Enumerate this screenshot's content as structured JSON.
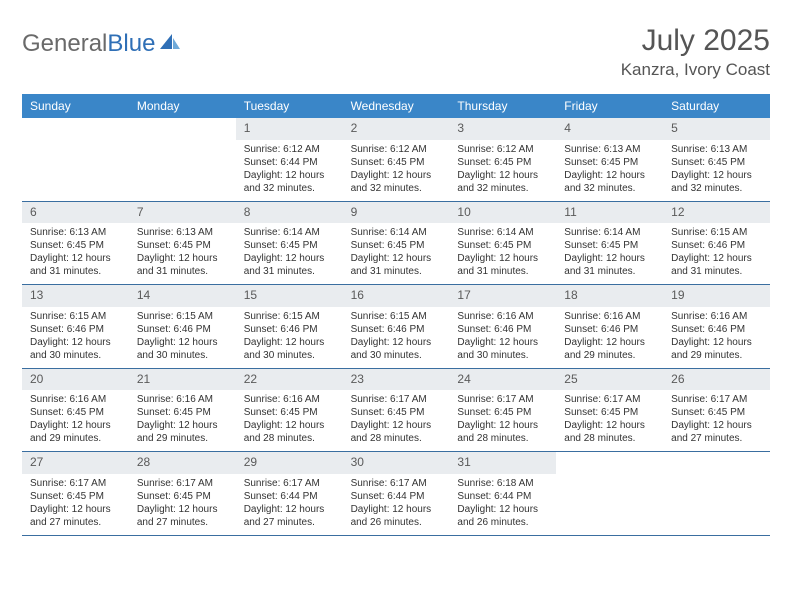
{
  "brand": {
    "part1": "General",
    "part2": "Blue"
  },
  "title": "July 2025",
  "location": "Kanzra, Ivory Coast",
  "colors": {
    "header_bg": "#3a86c8",
    "header_text": "#ffffff",
    "daynum_bg": "#e9ecef",
    "week_border": "#3a6ea0",
    "text": "#333333",
    "logo_gray": "#6a6a6a",
    "logo_blue": "#2f6fb6"
  },
  "weekdays": [
    "Sunday",
    "Monday",
    "Tuesday",
    "Wednesday",
    "Thursday",
    "Friday",
    "Saturday"
  ],
  "weeks": [
    [
      null,
      null,
      {
        "n": "1",
        "sr": "Sunrise: 6:12 AM",
        "ss": "Sunset: 6:44 PM",
        "d1": "Daylight: 12 hours",
        "d2": "and 32 minutes."
      },
      {
        "n": "2",
        "sr": "Sunrise: 6:12 AM",
        "ss": "Sunset: 6:45 PM",
        "d1": "Daylight: 12 hours",
        "d2": "and 32 minutes."
      },
      {
        "n": "3",
        "sr": "Sunrise: 6:12 AM",
        "ss": "Sunset: 6:45 PM",
        "d1": "Daylight: 12 hours",
        "d2": "and 32 minutes."
      },
      {
        "n": "4",
        "sr": "Sunrise: 6:13 AM",
        "ss": "Sunset: 6:45 PM",
        "d1": "Daylight: 12 hours",
        "d2": "and 32 minutes."
      },
      {
        "n": "5",
        "sr": "Sunrise: 6:13 AM",
        "ss": "Sunset: 6:45 PM",
        "d1": "Daylight: 12 hours",
        "d2": "and 32 minutes."
      }
    ],
    [
      {
        "n": "6",
        "sr": "Sunrise: 6:13 AM",
        "ss": "Sunset: 6:45 PM",
        "d1": "Daylight: 12 hours",
        "d2": "and 31 minutes."
      },
      {
        "n": "7",
        "sr": "Sunrise: 6:13 AM",
        "ss": "Sunset: 6:45 PM",
        "d1": "Daylight: 12 hours",
        "d2": "and 31 minutes."
      },
      {
        "n": "8",
        "sr": "Sunrise: 6:14 AM",
        "ss": "Sunset: 6:45 PM",
        "d1": "Daylight: 12 hours",
        "d2": "and 31 minutes."
      },
      {
        "n": "9",
        "sr": "Sunrise: 6:14 AM",
        "ss": "Sunset: 6:45 PM",
        "d1": "Daylight: 12 hours",
        "d2": "and 31 minutes."
      },
      {
        "n": "10",
        "sr": "Sunrise: 6:14 AM",
        "ss": "Sunset: 6:45 PM",
        "d1": "Daylight: 12 hours",
        "d2": "and 31 minutes."
      },
      {
        "n": "11",
        "sr": "Sunrise: 6:14 AM",
        "ss": "Sunset: 6:45 PM",
        "d1": "Daylight: 12 hours",
        "d2": "and 31 minutes."
      },
      {
        "n": "12",
        "sr": "Sunrise: 6:15 AM",
        "ss": "Sunset: 6:46 PM",
        "d1": "Daylight: 12 hours",
        "d2": "and 31 minutes."
      }
    ],
    [
      {
        "n": "13",
        "sr": "Sunrise: 6:15 AM",
        "ss": "Sunset: 6:46 PM",
        "d1": "Daylight: 12 hours",
        "d2": "and 30 minutes."
      },
      {
        "n": "14",
        "sr": "Sunrise: 6:15 AM",
        "ss": "Sunset: 6:46 PM",
        "d1": "Daylight: 12 hours",
        "d2": "and 30 minutes."
      },
      {
        "n": "15",
        "sr": "Sunrise: 6:15 AM",
        "ss": "Sunset: 6:46 PM",
        "d1": "Daylight: 12 hours",
        "d2": "and 30 minutes."
      },
      {
        "n": "16",
        "sr": "Sunrise: 6:15 AM",
        "ss": "Sunset: 6:46 PM",
        "d1": "Daylight: 12 hours",
        "d2": "and 30 minutes."
      },
      {
        "n": "17",
        "sr": "Sunrise: 6:16 AM",
        "ss": "Sunset: 6:46 PM",
        "d1": "Daylight: 12 hours",
        "d2": "and 30 minutes."
      },
      {
        "n": "18",
        "sr": "Sunrise: 6:16 AM",
        "ss": "Sunset: 6:46 PM",
        "d1": "Daylight: 12 hours",
        "d2": "and 29 minutes."
      },
      {
        "n": "19",
        "sr": "Sunrise: 6:16 AM",
        "ss": "Sunset: 6:46 PM",
        "d1": "Daylight: 12 hours",
        "d2": "and 29 minutes."
      }
    ],
    [
      {
        "n": "20",
        "sr": "Sunrise: 6:16 AM",
        "ss": "Sunset: 6:45 PM",
        "d1": "Daylight: 12 hours",
        "d2": "and 29 minutes."
      },
      {
        "n": "21",
        "sr": "Sunrise: 6:16 AM",
        "ss": "Sunset: 6:45 PM",
        "d1": "Daylight: 12 hours",
        "d2": "and 29 minutes."
      },
      {
        "n": "22",
        "sr": "Sunrise: 6:16 AM",
        "ss": "Sunset: 6:45 PM",
        "d1": "Daylight: 12 hours",
        "d2": "and 28 minutes."
      },
      {
        "n": "23",
        "sr": "Sunrise: 6:17 AM",
        "ss": "Sunset: 6:45 PM",
        "d1": "Daylight: 12 hours",
        "d2": "and 28 minutes."
      },
      {
        "n": "24",
        "sr": "Sunrise: 6:17 AM",
        "ss": "Sunset: 6:45 PM",
        "d1": "Daylight: 12 hours",
        "d2": "and 28 minutes."
      },
      {
        "n": "25",
        "sr": "Sunrise: 6:17 AM",
        "ss": "Sunset: 6:45 PM",
        "d1": "Daylight: 12 hours",
        "d2": "and 28 minutes."
      },
      {
        "n": "26",
        "sr": "Sunrise: 6:17 AM",
        "ss": "Sunset: 6:45 PM",
        "d1": "Daylight: 12 hours",
        "d2": "and 27 minutes."
      }
    ],
    [
      {
        "n": "27",
        "sr": "Sunrise: 6:17 AM",
        "ss": "Sunset: 6:45 PM",
        "d1": "Daylight: 12 hours",
        "d2": "and 27 minutes."
      },
      {
        "n": "28",
        "sr": "Sunrise: 6:17 AM",
        "ss": "Sunset: 6:45 PM",
        "d1": "Daylight: 12 hours",
        "d2": "and 27 minutes."
      },
      {
        "n": "29",
        "sr": "Sunrise: 6:17 AM",
        "ss": "Sunset: 6:44 PM",
        "d1": "Daylight: 12 hours",
        "d2": "and 27 minutes."
      },
      {
        "n": "30",
        "sr": "Sunrise: 6:17 AM",
        "ss": "Sunset: 6:44 PM",
        "d1": "Daylight: 12 hours",
        "d2": "and 26 minutes."
      },
      {
        "n": "31",
        "sr": "Sunrise: 6:18 AM",
        "ss": "Sunset: 6:44 PM",
        "d1": "Daylight: 12 hours",
        "d2": "and 26 minutes."
      },
      null,
      null
    ]
  ]
}
